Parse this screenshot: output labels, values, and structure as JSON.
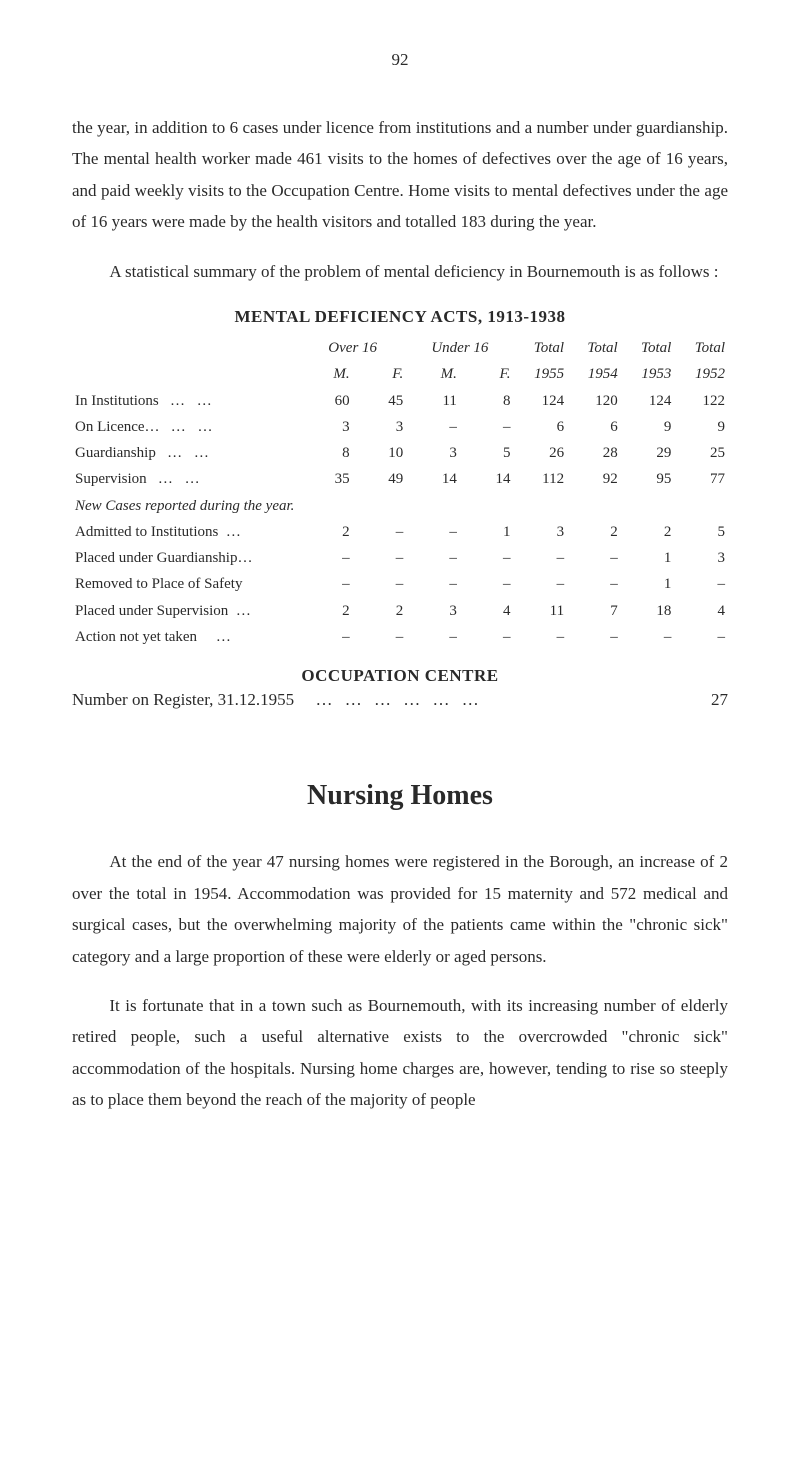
{
  "page_number": "92",
  "para1": "the year, in addition to 6 cases under licence from institutions and a number under guardianship. The mental health worker made 461 visits to the homes of defectives over the age of 16 years, and paid weekly visits to the Occupation Centre. Home visits to mental defectives under the age of 16 years were made by the health visitors and totalled 183 during the year.",
  "para2": "A statistical summary of the problem of mental deficiency in Bournemouth is as follows :",
  "table": {
    "heading": "MENTAL DEFICIENCY ACTS, 1913-1938",
    "header_top": [
      "Over 16",
      "Under 16",
      "Total",
      "Total",
      "Total",
      "Total"
    ],
    "header_bottom": [
      "M.",
      "F.",
      "M.",
      "F.",
      "1955",
      "1954",
      "1953",
      "1952"
    ],
    "rows": [
      {
        "label": "In Institutions",
        "dots": "…     …",
        "vals": [
          "60",
          "45",
          "11",
          "8",
          "124",
          "120",
          "124",
          "122"
        ]
      },
      {
        "label": "On Licence…",
        "dots": "…     …",
        "vals": [
          "3",
          "3",
          "–",
          "–",
          "6",
          "6",
          "9",
          "9"
        ]
      },
      {
        "label": "Guardianship",
        "dots": "…     …",
        "vals": [
          "8",
          "10",
          "3",
          "5",
          "26",
          "28",
          "29",
          "25"
        ]
      },
      {
        "label": "Supervision",
        "dots": "…     …",
        "vals": [
          "35",
          "49",
          "14",
          "14",
          "112",
          "92",
          "95",
          "77"
        ]
      }
    ],
    "subhead": "New Cases reported during the year.",
    "rows2": [
      {
        "label": "Admitted to Institutions",
        "dots": "…",
        "vals": [
          "2",
          "–",
          "–",
          "1",
          "3",
          "2",
          "2",
          "5"
        ]
      },
      {
        "label": "Placed under Guardianship…",
        "dots": "",
        "vals": [
          "–",
          "–",
          "–",
          "–",
          "–",
          "–",
          "1",
          "3"
        ]
      },
      {
        "label": "Removed to Place of Safety",
        "dots": "",
        "vals": [
          "–",
          "–",
          "–",
          "–",
          "–",
          "–",
          "1",
          "–"
        ]
      },
      {
        "label": "Placed under Supervision",
        "dots": "…",
        "vals": [
          "2",
          "2",
          "3",
          "4",
          "11",
          "7",
          "18",
          "4"
        ]
      },
      {
        "label": "Action not yet taken",
        "dots": "…",
        "vals": [
          "–",
          "–",
          "–",
          "–",
          "–",
          "–",
          "–",
          "–"
        ]
      }
    ]
  },
  "occupation_centre": {
    "heading": "OCCUPATION CENTRE",
    "line_label": "Number on Register, 31.12.1955",
    "line_dots": "…     …     …     …     …     …",
    "line_value": "27"
  },
  "nursing_homes": {
    "heading": "Nursing Homes",
    "para1": "At the end of the year 47 nursing homes were registered in the Borough, an increase of 2 over the total in 1954. Accommodation was provided for 15 maternity and 572 medical and surgical cases, but the overwhelming majority of the patients came within the \"chronic sick\" category and a large proportion of these were elderly or aged persons.",
    "para2": "It is fortunate that in a town such as Bournemouth, with its increasing number of elderly retired people, such a useful alternative exists to the overcrowded \"chronic sick\" accommodation of the hospitals. Nursing home charges are, however, tending to rise so steeply as to place them beyond the reach of the majority of people"
  }
}
